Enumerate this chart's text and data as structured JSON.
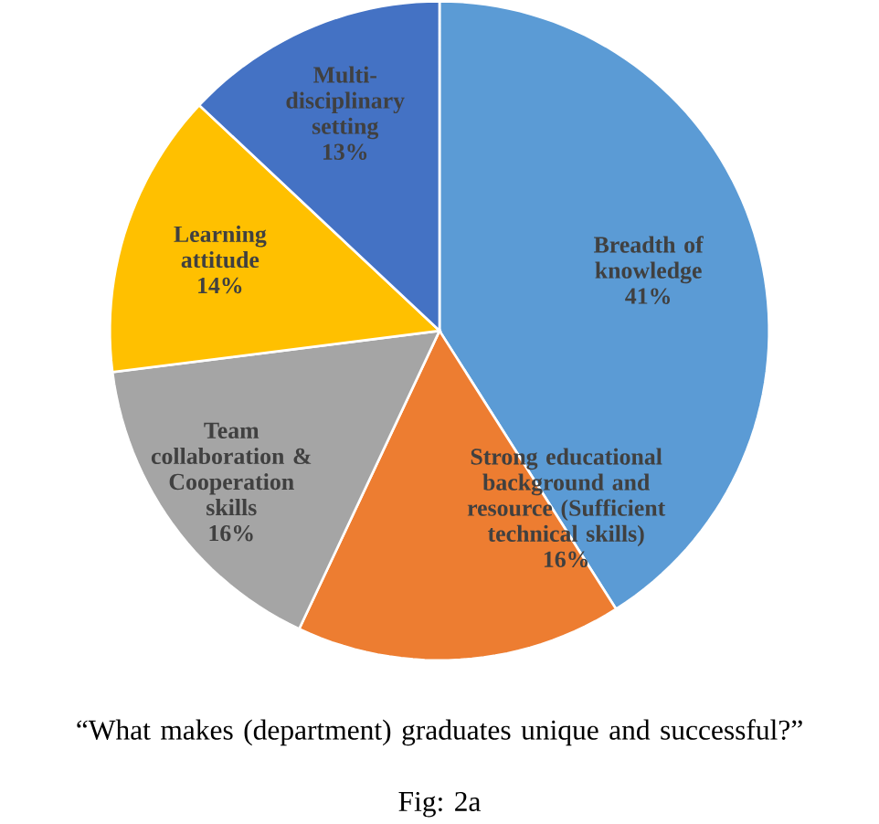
{
  "chart_data": {
    "type": "pie",
    "title": "“What makes (department) graduates unique and successful?”",
    "annotations": [
      "Fig: 2a"
    ],
    "categories": [
      "Breadth of knowledge",
      "Strong educational background and resource (Sufficient technical skills)",
      "Team collaboration & Cooperation skills",
      "Learning attitude",
      "Multi-disciplinary setting"
    ],
    "values": [
      41,
      16,
      16,
      14,
      13
    ],
    "value_labels": [
      "41%",
      "16%",
      "16%",
      "14%",
      "13%"
    ],
    "colors": [
      "#5b9bd5",
      "#ed7d31",
      "#a5a5a5",
      "#ffc000",
      "#4472c4"
    ]
  }
}
